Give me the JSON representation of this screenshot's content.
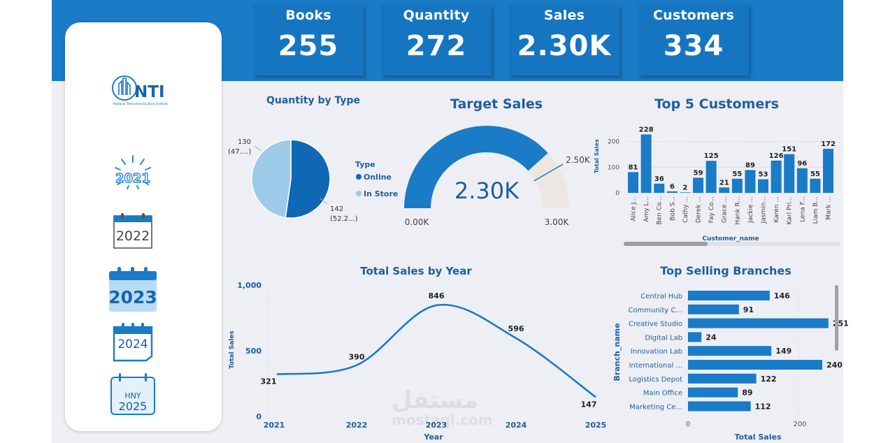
{
  "kpis": [
    {
      "title": "Books",
      "value": "255"
    },
    {
      "title": "Quantity",
      "value": "272"
    },
    {
      "title": "Sales",
      "value": "2.30K"
    },
    {
      "title": "Customers",
      "value": "334"
    }
  ],
  "logo": {
    "text": "NTI",
    "subtitle": "National Telecommunication Institute"
  },
  "year_filters": [
    {
      "label": "2021",
      "selected": false
    },
    {
      "label": "2022",
      "selected": false
    },
    {
      "label": "2023",
      "selected": true
    },
    {
      "label": "2024",
      "selected": false
    },
    {
      "label": "HNY",
      "label2": "2025",
      "selected": false
    }
  ],
  "watermark": {
    "arabic": "مستقل",
    "latin": "mostaql.com"
  },
  "colors": {
    "accent": "#1a7bc6",
    "dark_blue": "#1068b4",
    "light_blue": "#9dcae8",
    "gauge_bg": "#ece8e1",
    "title": "#1f5f9e"
  },
  "chart_data": [
    {
      "type": "pie",
      "title": "Quantity by Type",
      "legend_title": "Type",
      "legend_position": "right",
      "slices": [
        {
          "name": "Online",
          "value": 142,
          "label": "142",
          "label2": "(52.2...)"
        },
        {
          "name": "In Store",
          "value": 130,
          "label": "130",
          "label2": "(47....)"
        }
      ]
    },
    {
      "type": "gauge",
      "title": "Target Sales",
      "value": 2300,
      "value_label": "2.30K",
      "min": 0,
      "min_label": "0.00K",
      "max": 3000,
      "max_label": "3.00K",
      "target": 2500,
      "target_label": "2.50K"
    },
    {
      "type": "bar",
      "title": "Top 5 Customers",
      "xlabel": "Customer_name",
      "ylabel": "Total Sales",
      "ylim": [
        0,
        240
      ],
      "yticks": [
        0,
        100,
        200
      ],
      "categories": [
        "Alice J...",
        "Amy L...",
        "Ben Co...",
        "Bob S...",
        "Cathy ...",
        "Derek ...",
        "Fay Co...",
        "Grace ...",
        "Hank R...",
        "Jackie ...",
        "Jasmin...",
        "Karen ...",
        "Karl Pri...",
        "Lena F...",
        "Liam B...",
        "Mark ..."
      ],
      "values": [
        81,
        228,
        36,
        6,
        2,
        59,
        125,
        21,
        55,
        89,
        53,
        126,
        151,
        96,
        55,
        172
      ]
    },
    {
      "type": "line",
      "title": "Total Sales by Year",
      "xlabel": "Year",
      "ylabel": "Total Sales",
      "ylim": [
        0,
        1000
      ],
      "yticks": [
        0,
        500,
        1000
      ],
      "ytick_labels": [
        "0",
        "500",
        "1,000"
      ],
      "x": [
        "2021",
        "2022",
        "2023",
        "2024",
        "2025"
      ],
      "values": [
        321,
        390,
        846,
        596,
        147
      ]
    },
    {
      "type": "bar",
      "orientation": "horizontal",
      "title": "Top Selling Branches",
      "xlabel": "Total Sales",
      "ylabel": "Branch_name",
      "xlim": [
        0,
        280
      ],
      "xticks": [
        0,
        200
      ],
      "categories": [
        "Central Hub",
        "Community C...",
        "Creative Studio",
        "Digital Lab",
        "Innovation Lab",
        "International ...",
        "Logistics Depot",
        "Main Office",
        "Marketing Ce..."
      ],
      "values": [
        146,
        91,
        251,
        24,
        149,
        240,
        122,
        89,
        112
      ]
    }
  ]
}
